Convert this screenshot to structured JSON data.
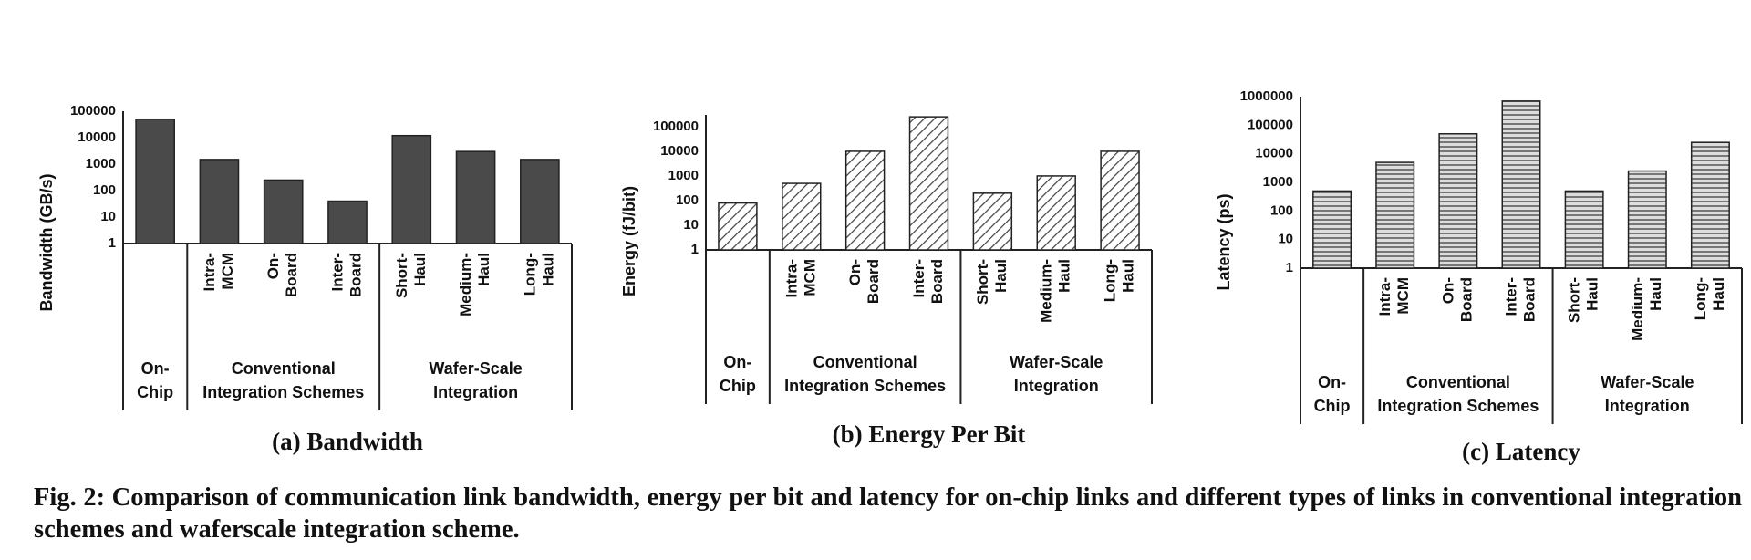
{
  "chart_data": [
    {
      "type": "bar",
      "title": "(a) Bandwidth",
      "y_label": "Bandwidth (GB/s)",
      "log_scale": true,
      "color": "#4a4a4a",
      "fill": "solid",
      "ylim": [
        1,
        100000
      ],
      "yticks": [
        1,
        10,
        100,
        1000,
        10000,
        100000
      ],
      "groups": [
        {
          "label": [
            "On-",
            "Chip"
          ],
          "categories": [
            null
          ],
          "values": [
            50000
          ]
        },
        {
          "label": [
            "Conventional",
            "Integration Schemes"
          ],
          "categories": [
            [
              "Intra-",
              "MCM"
            ],
            [
              "On-",
              "Board"
            ],
            [
              "Inter-",
              "Board"
            ]
          ],
          "values": [
            1500,
            250,
            40
          ]
        },
        {
          "label": [
            "Wafer-Scale",
            "Integration"
          ],
          "categories": [
            [
              "Short-",
              "Haul"
            ],
            [
              "Medium-",
              "Haul"
            ],
            [
              "Long-",
              "Haul"
            ]
          ],
          "values": [
            12000,
            3000,
            1500
          ]
        }
      ]
    },
    {
      "type": "bar",
      "title": "(b) Energy Per Bit",
      "y_label": "Energy (fJ/bit)",
      "log_scale": true,
      "color": "#444444",
      "fill": "hatch",
      "ylim": [
        1,
        300000
      ],
      "yticks": [
        1,
        10,
        100,
        1000,
        10000,
        100000
      ],
      "groups": [
        {
          "label": [
            "On-",
            "Chip"
          ],
          "categories": [
            null
          ],
          "values": [
            80
          ]
        },
        {
          "label": [
            "Conventional",
            "Integration Schemes"
          ],
          "categories": [
            [
              "Intra-",
              "MCM"
            ],
            [
              "On-",
              "Board"
            ],
            [
              "Inter-",
              "Board"
            ]
          ],
          "values": [
            500,
            10000,
            250000
          ]
        },
        {
          "label": [
            "Wafer-Scale",
            "Integration"
          ],
          "categories": [
            [
              "Short-",
              "Haul"
            ],
            [
              "Medium-",
              "Haul"
            ],
            [
              "Long-",
              "Haul"
            ]
          ],
          "values": [
            200,
            1000,
            10000
          ]
        }
      ]
    },
    {
      "type": "bar",
      "title": "(c) Latency",
      "y_label": "Latency (ps)",
      "log_scale": true,
      "color": "#777777",
      "fill": "stripes",
      "ylim": [
        1,
        1000000
      ],
      "yticks": [
        1,
        10,
        100,
        1000,
        10000,
        100000,
        1000000
      ],
      "groups": [
        {
          "label": [
            "On-",
            "Chip"
          ],
          "categories": [
            null
          ],
          "values": [
            500
          ]
        },
        {
          "label": [
            "Conventional",
            "Integration Schemes"
          ],
          "categories": [
            [
              "Intra-",
              "MCM"
            ],
            [
              "On-",
              "Board"
            ],
            [
              "Inter-",
              "Board"
            ]
          ],
          "values": [
            5000,
            50000,
            700000
          ]
        },
        {
          "label": [
            "Wafer-Scale",
            "Integration"
          ],
          "categories": [
            [
              "Short-",
              "Haul"
            ],
            [
              "Medium-",
              "Haul"
            ],
            [
              "Long-",
              "Haul"
            ]
          ],
          "values": [
            500,
            2500,
            25000
          ]
        }
      ]
    }
  ],
  "caption": "Fig. 2: Comparison of communication link bandwidth, energy per bit and latency for on-chip links and different types of links in conventional integration schemes and waferscale integration scheme."
}
